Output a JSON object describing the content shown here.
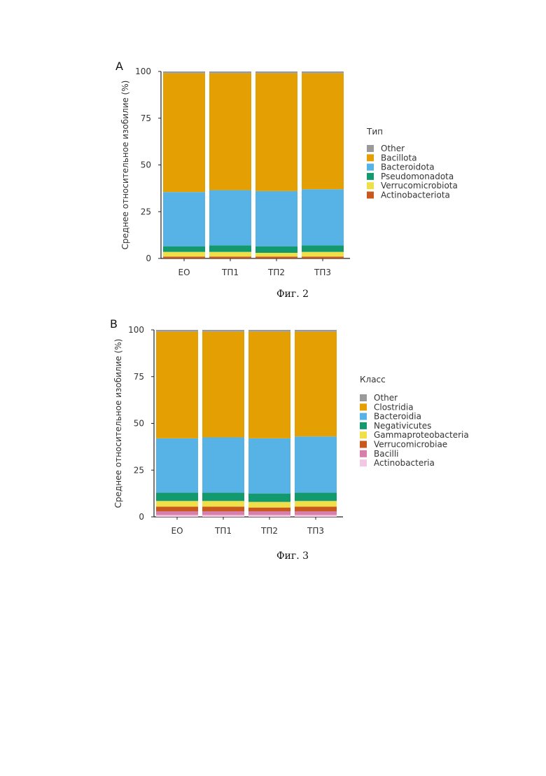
{
  "chart_data": [
    {
      "type": "bar",
      "stacked": true,
      "panel_label": "A",
      "figure_caption": "Фиг. 2",
      "ylabel": "Среднее относительное изобилие (%)",
      "xlabel": "",
      "ylim": [
        0,
        100
      ],
      "yticks": [
        "0",
        "25",
        "50",
        "75",
        "100"
      ],
      "categories": [
        "ЕО",
        "ТП1",
        "ТП2",
        "ТП3"
      ],
      "legend_title": "Тип",
      "legend_position": "right",
      "series": [
        {
          "name": "Actinobacteriota",
          "color": "#c9581c",
          "values": [
            1,
            1,
            1,
            1
          ]
        },
        {
          "name": "Verrucomicrobiota",
          "color": "#efe04a",
          "values": [
            2.5,
            2.5,
            2,
            2.5
          ]
        },
        {
          "name": "Pseudomonadota",
          "color": "#129a6e",
          "values": [
            3,
            3.5,
            3.5,
            3.5
          ]
        },
        {
          "name": "Bacteroidota",
          "color": "#57b3e6",
          "values": [
            29,
            29.5,
            29.5,
            30
          ]
        },
        {
          "name": "Bacillota",
          "color": "#e4a003",
          "values": [
            63.5,
            62.5,
            63,
            62
          ]
        },
        {
          "name": "Other",
          "color": "#9a9a9a",
          "values": [
            1,
            1,
            1,
            1
          ]
        }
      ]
    },
    {
      "type": "bar",
      "stacked": true,
      "panel_label": "B",
      "figure_caption": "Фиг. 3",
      "ylabel": "Среднее относительное изобилие (%)",
      "xlabel": "",
      "ylim": [
        0,
        100
      ],
      "yticks": [
        "0",
        "25",
        "50",
        "75",
        "100"
      ],
      "categories": [
        "ЕО",
        "ТП1",
        "ТП2",
        "ТП3"
      ],
      "legend_title": "Класс",
      "legend_position": "right",
      "series": [
        {
          "name": "Actinobacteria",
          "color": "#f2c7e3",
          "values": [
            1,
            1,
            1,
            1
          ]
        },
        {
          "name": "Bacilli",
          "color": "#d87eaa",
          "values": [
            2,
            2,
            2,
            2
          ]
        },
        {
          "name": "Verrucomicrobiae",
          "color": "#c9581c",
          "values": [
            2.5,
            2.5,
            2,
            2.5
          ]
        },
        {
          "name": "Gammaproteobacteria",
          "color": "#efe04a",
          "values": [
            3,
            3,
            3,
            3
          ]
        },
        {
          "name": "Negativicutes",
          "color": "#129a6e",
          "values": [
            4.5,
            4.5,
            4.5,
            4.5
          ]
        },
        {
          "name": "Bacteroidia",
          "color": "#57b3e6",
          "values": [
            29,
            29.5,
            29.5,
            30
          ]
        },
        {
          "name": "Clostridia",
          "color": "#e4a003",
          "values": [
            57,
            56.5,
            57,
            56
          ]
        },
        {
          "name": "Other",
          "color": "#9a9a9a",
          "values": [
            1,
            1,
            1,
            1
          ]
        }
      ]
    }
  ]
}
